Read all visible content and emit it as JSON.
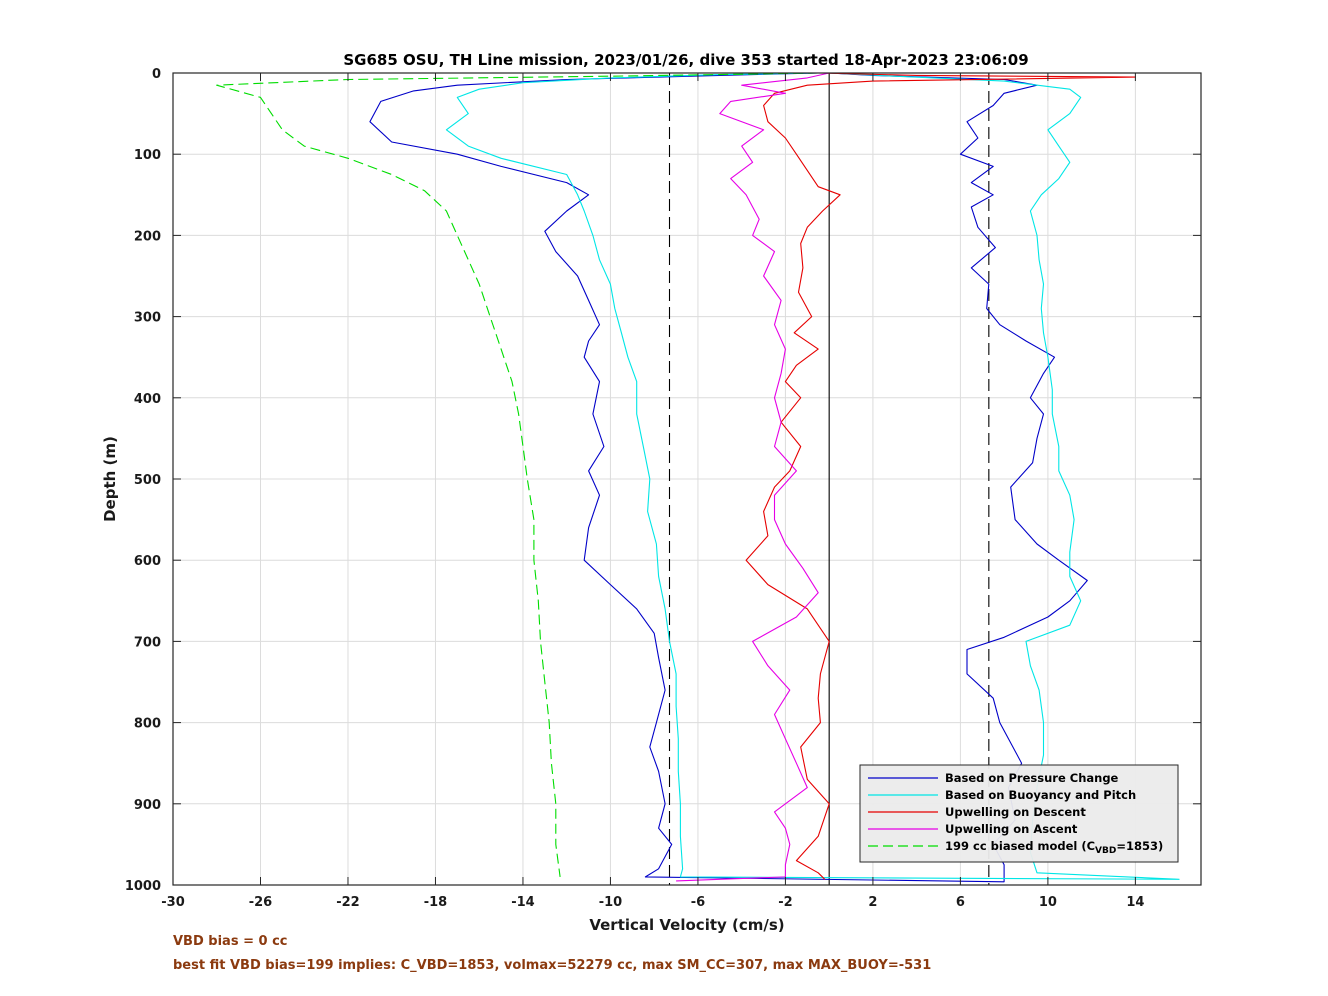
{
  "chart_data": {
    "type": "line",
    "title": "SG685 OSU, TH Line mission, 2023/01/26, dive 353 started 18-Apr-2023 23:06:09",
    "xlabel": "Vertical Velocity (cm/s)",
    "ylabel": "Depth (m)",
    "xlim": [
      -30,
      17
    ],
    "ylim": [
      0,
      1000
    ],
    "y_reversed": true,
    "grid": true,
    "xticks": [
      -30,
      -26,
      -22,
      -18,
      -14,
      -10,
      -6,
      -2,
      2,
      6,
      10,
      14
    ],
    "yticks": [
      0,
      100,
      200,
      300,
      400,
      500,
      600,
      700,
      800,
      900,
      1000
    ],
    "reference_lines": [
      {
        "x": -7.3,
        "style": "dashed",
        "color": "#000000"
      },
      {
        "x": 0,
        "style": "solid",
        "color": "#000000"
      },
      {
        "x": 7.3,
        "style": "dashed",
        "color": "#000000"
      }
    ],
    "legend_position": "bottom-right",
    "series": [
      {
        "name": "Based on Pressure Change",
        "color": "#0000c8",
        "style": "solid",
        "points": [
          [
            -0.5,
            0
          ],
          [
            -5,
            3
          ],
          [
            -12,
            8
          ],
          [
            -17,
            15
          ],
          [
            -19,
            22
          ],
          [
            -20.5,
            35
          ],
          [
            -21,
            60
          ],
          [
            -20,
            85
          ],
          [
            -17,
            100
          ],
          [
            -15,
            115
          ],
          [
            -12,
            135
          ],
          [
            -11,
            150
          ],
          [
            -12,
            170
          ],
          [
            -13,
            195
          ],
          [
            -12.5,
            220
          ],
          [
            -11.5,
            250
          ],
          [
            -11,
            280
          ],
          [
            -10.5,
            310
          ],
          [
            -11,
            330
          ],
          [
            -11.2,
            350
          ],
          [
            -10.5,
            380
          ],
          [
            -10.8,
            420
          ],
          [
            -10.3,
            460
          ],
          [
            -11,
            490
          ],
          [
            -10.5,
            520
          ],
          [
            -11,
            560
          ],
          [
            -11.2,
            600
          ],
          [
            -10,
            630
          ],
          [
            -8.8,
            660
          ],
          [
            -8,
            690
          ],
          [
            -7.8,
            720
          ],
          [
            -7.5,
            760
          ],
          [
            -7.9,
            800
          ],
          [
            -8.2,
            830
          ],
          [
            -7.8,
            860
          ],
          [
            -7.5,
            900
          ],
          [
            -7.8,
            930
          ],
          [
            -7.2,
            950
          ],
          [
            -7.8,
            980
          ],
          [
            -8.4,
            990
          ],
          [
            8,
            996
          ],
          [
            8,
            975
          ],
          [
            7.5,
            950
          ],
          [
            8.5,
            920
          ],
          [
            8.2,
            880
          ],
          [
            8.8,
            850
          ],
          [
            7.8,
            800
          ],
          [
            7.5,
            770
          ],
          [
            6.3,
            740
          ],
          [
            6.3,
            710
          ],
          [
            8,
            695
          ],
          [
            10,
            670
          ],
          [
            11,
            650
          ],
          [
            11.8,
            625
          ],
          [
            10.5,
            600
          ],
          [
            9.5,
            580
          ],
          [
            8.5,
            550
          ],
          [
            8.3,
            510
          ],
          [
            9.3,
            480
          ],
          [
            9.5,
            450
          ],
          [
            9.8,
            420
          ],
          [
            9.2,
            400
          ],
          [
            9.8,
            370
          ],
          [
            10.3,
            350
          ],
          [
            9,
            330
          ],
          [
            7.8,
            310
          ],
          [
            7.2,
            290
          ],
          [
            7.3,
            260
          ],
          [
            6.5,
            240
          ],
          [
            7.6,
            215
          ],
          [
            6.8,
            190
          ],
          [
            6.5,
            165
          ],
          [
            7.5,
            150
          ],
          [
            6.5,
            135
          ],
          [
            7.5,
            115
          ],
          [
            6,
            100
          ],
          [
            6.8,
            80
          ],
          [
            6.3,
            60
          ],
          [
            7.5,
            40
          ],
          [
            8,
            25
          ],
          [
            9.5,
            15
          ],
          [
            8,
            8
          ],
          [
            2,
            3
          ],
          [
            0,
            0
          ]
        ]
      },
      {
        "name": "Based on Buoyancy and Pitch",
        "color": "#00e6e6",
        "style": "solid",
        "points": [
          [
            -0.5,
            0
          ],
          [
            -5,
            2
          ],
          [
            -10,
            6
          ],
          [
            -14,
            12
          ],
          [
            -16,
            20
          ],
          [
            -17,
            30
          ],
          [
            -16.5,
            50
          ],
          [
            -17.5,
            70
          ],
          [
            -16.5,
            90
          ],
          [
            -15,
            105
          ],
          [
            -12,
            125
          ],
          [
            -11.5,
            150
          ],
          [
            -11.2,
            170
          ],
          [
            -10.8,
            200
          ],
          [
            -10.5,
            230
          ],
          [
            -10,
            260
          ],
          [
            -9.8,
            290
          ],
          [
            -9.5,
            320
          ],
          [
            -9.2,
            350
          ],
          [
            -8.8,
            380
          ],
          [
            -8.8,
            420
          ],
          [
            -8.5,
            460
          ],
          [
            -8.2,
            500
          ],
          [
            -8.3,
            540
          ],
          [
            -7.9,
            580
          ],
          [
            -7.8,
            620
          ],
          [
            -7.5,
            660
          ],
          [
            -7.3,
            700
          ],
          [
            -7,
            740
          ],
          [
            -7,
            780
          ],
          [
            -6.9,
            820
          ],
          [
            -6.9,
            860
          ],
          [
            -6.8,
            900
          ],
          [
            -6.8,
            940
          ],
          [
            -6.7,
            980
          ],
          [
            -6.8,
            990
          ],
          [
            16,
            993
          ],
          [
            9.5,
            985
          ],
          [
            9.2,
            960
          ],
          [
            9.3,
            920
          ],
          [
            9.5,
            880
          ],
          [
            9.8,
            840
          ],
          [
            9.8,
            800
          ],
          [
            9.6,
            760
          ],
          [
            9.2,
            730
          ],
          [
            9,
            700
          ],
          [
            11,
            680
          ],
          [
            11.5,
            650
          ],
          [
            11,
            620
          ],
          [
            11,
            590
          ],
          [
            11.2,
            550
          ],
          [
            11,
            520
          ],
          [
            10.5,
            490
          ],
          [
            10.5,
            460
          ],
          [
            10.2,
            420
          ],
          [
            10.2,
            390
          ],
          [
            10,
            350
          ],
          [
            9.8,
            320
          ],
          [
            9.7,
            290
          ],
          [
            9.8,
            260
          ],
          [
            9.6,
            230
          ],
          [
            9.5,
            200
          ],
          [
            9.2,
            170
          ],
          [
            9.7,
            150
          ],
          [
            10.5,
            130
          ],
          [
            11,
            110
          ],
          [
            10.5,
            90
          ],
          [
            10,
            70
          ],
          [
            11,
            50
          ],
          [
            11.5,
            30
          ],
          [
            11,
            20
          ],
          [
            8,
            10
          ],
          [
            3,
            4
          ],
          [
            0,
            0
          ]
        ]
      },
      {
        "name": "Upwelling on Descent",
        "color": "#e60000",
        "style": "solid",
        "points": [
          [
            -0.5,
            0
          ],
          [
            4,
            3
          ],
          [
            14,
            5
          ],
          [
            2,
            10
          ],
          [
            -1,
            15
          ],
          [
            -2.5,
            25
          ],
          [
            -3,
            40
          ],
          [
            -2.8,
            60
          ],
          [
            -2,
            80
          ],
          [
            -1.5,
            100
          ],
          [
            -1,
            120
          ],
          [
            -0.5,
            140
          ],
          [
            0.5,
            150
          ],
          [
            -0.3,
            170
          ],
          [
            -1,
            190
          ],
          [
            -1.3,
            210
          ],
          [
            -1.2,
            240
          ],
          [
            -1.4,
            270
          ],
          [
            -0.8,
            300
          ],
          [
            -1.6,
            320
          ],
          [
            -0.5,
            340
          ],
          [
            -1.5,
            360
          ],
          [
            -2,
            380
          ],
          [
            -1.3,
            400
          ],
          [
            -2.2,
            430
          ],
          [
            -1.3,
            460
          ],
          [
            -1.8,
            490
          ],
          [
            -2.5,
            510
          ],
          [
            -3,
            540
          ],
          [
            -2.8,
            570
          ],
          [
            -3.8,
            600
          ],
          [
            -2.8,
            630
          ],
          [
            -1,
            660
          ],
          [
            0,
            700
          ],
          [
            -0.4,
            740
          ],
          [
            -0.5,
            770
          ],
          [
            -0.4,
            800
          ],
          [
            -1.3,
            830
          ],
          [
            -1,
            870
          ],
          [
            0,
            900
          ],
          [
            -0.5,
            940
          ],
          [
            -1.5,
            970
          ],
          [
            -0.5,
            985
          ],
          [
            -0.2,
            993
          ]
        ]
      },
      {
        "name": "Upwelling on Ascent",
        "color": "#e600e6",
        "style": "solid",
        "points": [
          [
            -7,
            995
          ],
          [
            -2,
            990
          ],
          [
            -2,
            975
          ],
          [
            -1.8,
            950
          ],
          [
            -2,
            930
          ],
          [
            -2.5,
            910
          ],
          [
            -1,
            880
          ],
          [
            -1.5,
            850
          ],
          [
            -2,
            820
          ],
          [
            -2.5,
            790
          ],
          [
            -1.8,
            760
          ],
          [
            -2.8,
            730
          ],
          [
            -3.5,
            700
          ],
          [
            -1.5,
            670
          ],
          [
            -0.5,
            640
          ],
          [
            -1.2,
            610
          ],
          [
            -2,
            580
          ],
          [
            -2.5,
            550
          ],
          [
            -2.5,
            520
          ],
          [
            -1.5,
            490
          ],
          [
            -2.5,
            460
          ],
          [
            -2.2,
            430
          ],
          [
            -2.5,
            400
          ],
          [
            -2.2,
            370
          ],
          [
            -2,
            340
          ],
          [
            -2.5,
            310
          ],
          [
            -2.2,
            280
          ],
          [
            -3,
            250
          ],
          [
            -2.5,
            220
          ],
          [
            -3.5,
            200
          ],
          [
            -3.2,
            180
          ],
          [
            -3.8,
            150
          ],
          [
            -4.5,
            130
          ],
          [
            -3.5,
            110
          ],
          [
            -4,
            90
          ],
          [
            -3,
            70
          ],
          [
            -5,
            50
          ],
          [
            -4.5,
            35
          ],
          [
            -2,
            25
          ],
          [
            -4,
            15
          ],
          [
            -1,
            6
          ],
          [
            0,
            0
          ]
        ]
      },
      {
        "name": "199 cc biased model (C_VBD=1853)",
        "color": "#00dd00",
        "style": "dashed",
        "points": [
          [
            -0.5,
            0
          ],
          [
            -10,
            4
          ],
          [
            -22,
            8
          ],
          [
            -28,
            15
          ],
          [
            -26,
            30
          ],
          [
            -25.5,
            50
          ],
          [
            -25,
            70
          ],
          [
            -24,
            90
          ],
          [
            -22,
            105
          ],
          [
            -20,
            125
          ],
          [
            -18.5,
            145
          ],
          [
            -17.5,
            170
          ],
          [
            -17,
            200
          ],
          [
            -16.5,
            230
          ],
          [
            -16,
            260
          ],
          [
            -15.5,
            300
          ],
          [
            -15,
            340
          ],
          [
            -14.5,
            380
          ],
          [
            -14.2,
            420
          ],
          [
            -14,
            460
          ],
          [
            -13.8,
            500
          ],
          [
            -13.5,
            550
          ],
          [
            -13.5,
            600
          ],
          [
            -13.3,
            650
          ],
          [
            -13.2,
            700
          ],
          [
            -13,
            750
          ],
          [
            -12.8,
            800
          ],
          [
            -12.7,
            850
          ],
          [
            -12.5,
            900
          ],
          [
            -12.5,
            950
          ],
          [
            -12.3,
            990
          ]
        ]
      }
    ],
    "legend_labels": [
      "Based on Pressure Change",
      "Based on Buoyancy and Pitch",
      "Upwelling on Descent",
      "Upwelling on Ascent"
    ],
    "legend_last": {
      "prefix": "199 cc biased model (C",
      "sub": "VBD",
      "suffix": "=1853)"
    }
  },
  "notes": {
    "line1": "VBD bias = 0 cc",
    "line2": "best fit VBD bias=199 implies: C_VBD=1853, volmax=52279 cc, max SM_CC=307, max MAX_BUOY=-531"
  }
}
